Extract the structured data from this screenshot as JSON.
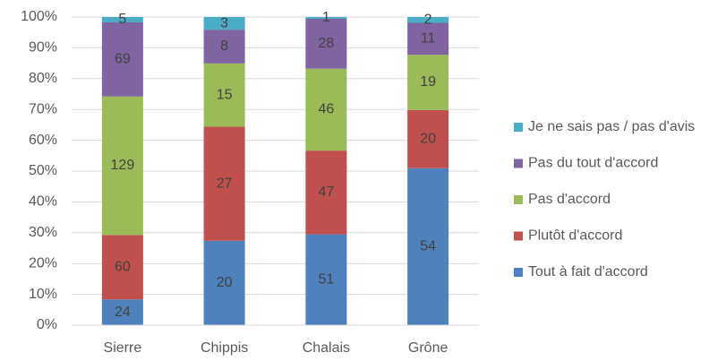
{
  "chart_data": {
    "type": "bar",
    "stacked": "percent",
    "categories": [
      "Sierre",
      "Chippis",
      "Chalais",
      "Grône"
    ],
    "series": [
      {
        "name": "Tout à fait d'accord",
        "color": "#4f81bd",
        "values": [
          24,
          20,
          51,
          54
        ]
      },
      {
        "name": "Plutôt d'accord",
        "color": "#c0504d",
        "values": [
          60,
          27,
          47,
          20
        ]
      },
      {
        "name": "Pas d'accord",
        "color": "#9bbb59",
        "values": [
          129,
          15,
          46,
          19
        ]
      },
      {
        "name": "Pas du tout d'accord",
        "color": "#8064a2",
        "values": [
          69,
          8,
          28,
          11
        ]
      },
      {
        "name": "Je ne sais pas / pas d'avis",
        "color": "#4bacc6",
        "values": [
          5,
          3,
          1,
          2
        ]
      }
    ],
    "ylim": [
      0,
      100
    ],
    "yticks": [
      {
        "value": 0,
        "label": "0%"
      },
      {
        "value": 10,
        "label": "10%"
      },
      {
        "value": 20,
        "label": "20%"
      },
      {
        "value": 30,
        "label": "30%"
      },
      {
        "value": 40,
        "label": "40%"
      },
      {
        "value": 50,
        "label": "50%"
      },
      {
        "value": 60,
        "label": "60%"
      },
      {
        "value": 70,
        "label": "70%"
      },
      {
        "value": 80,
        "label": "80%"
      },
      {
        "value": 90,
        "label": "90%"
      },
      {
        "value": 100,
        "label": "100%"
      }
    ],
    "grid": true,
    "legend": "right"
  }
}
